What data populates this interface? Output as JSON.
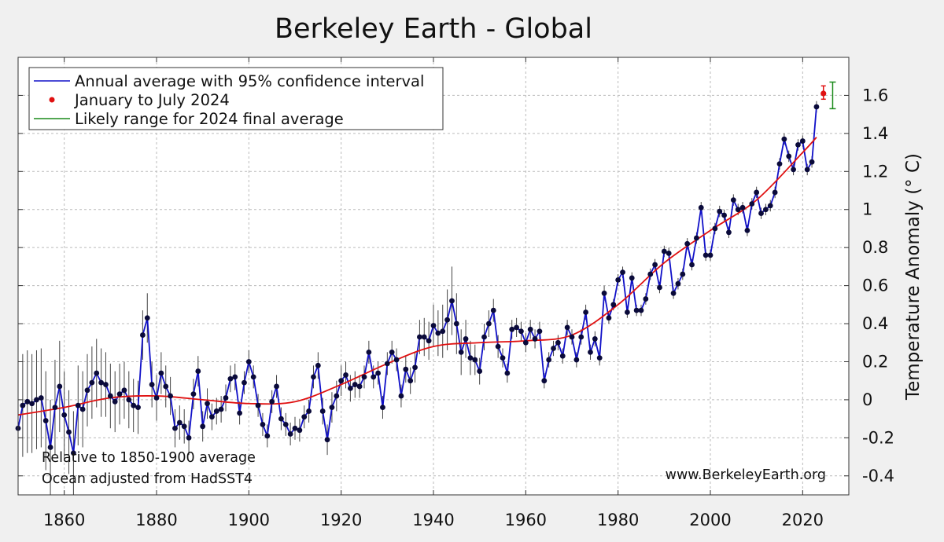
{
  "chart_data": {
    "type": "line",
    "title": "Berkeley Earth - Global",
    "ylabel": "Temperature Anomaly (° C)",
    "xlabel": "",
    "xlim": [
      1850,
      2030
    ],
    "ylim": [
      -0.5,
      1.8
    ],
    "grid": true,
    "legend_position": "top-left",
    "x_ticks": [
      "1860",
      "1880",
      "1900",
      "1920",
      "1940",
      "1960",
      "1980",
      "2000",
      "2020"
    ],
    "y_ticks": [
      "-0.4",
      "-0.2",
      "0",
      "0.2",
      "0.4",
      "0.6",
      "0.8",
      "1",
      "1.2",
      "1.4",
      "1.6"
    ],
    "legend": [
      "Annual average with 95% confidence interval",
      "January to July 2024",
      "Likely range for 2024 final average"
    ],
    "annotations": [
      "Relative to 1850-1900 average",
      "Ocean adjusted from HadSST4",
      "www.BerkeleyEarth.org"
    ],
    "colors": {
      "annual": "#1010c8",
      "points": "#0a0a3a",
      "smooth": "#e01010",
      "jan_jul": "#e01010",
      "likely": "#1a8a1a",
      "errorbar": "#444444"
    },
    "series": [
      {
        "name": "Annual average with 95% confidence interval",
        "x": [
          1850,
          1851,
          1852,
          1853,
          1854,
          1855,
          1856,
          1857,
          1858,
          1859,
          1860,
          1861,
          1862,
          1863,
          1864,
          1865,
          1866,
          1867,
          1868,
          1869,
          1870,
          1871,
          1872,
          1873,
          1874,
          1875,
          1876,
          1877,
          1878,
          1879,
          1880,
          1881,
          1882,
          1883,
          1884,
          1885,
          1886,
          1887,
          1888,
          1889,
          1890,
          1891,
          1892,
          1893,
          1894,
          1895,
          1896,
          1897,
          1898,
          1899,
          1900,
          1901,
          1902,
          1903,
          1904,
          1905,
          1906,
          1907,
          1908,
          1909,
          1910,
          1911,
          1912,
          1913,
          1914,
          1915,
          1916,
          1917,
          1918,
          1919,
          1920,
          1921,
          1922,
          1923,
          1924,
          1925,
          1926,
          1927,
          1928,
          1929,
          1930,
          1931,
          1932,
          1933,
          1934,
          1935,
          1936,
          1937,
          1938,
          1939,
          1940,
          1941,
          1942,
          1943,
          1944,
          1945,
          1946,
          1947,
          1948,
          1949,
          1950,
          1951,
          1952,
          1953,
          1954,
          1955,
          1956,
          1957,
          1958,
          1959,
          1960,
          1961,
          1962,
          1963,
          1964,
          1965,
          1966,
          1967,
          1968,
          1969,
          1970,
          1971,
          1972,
          1973,
          1974,
          1975,
          1976,
          1977,
          1978,
          1979,
          1980,
          1981,
          1982,
          1983,
          1984,
          1985,
          1986,
          1987,
          1988,
          1989,
          1990,
          1991,
          1992,
          1993,
          1994,
          1995,
          1996,
          1997,
          1998,
          1999,
          2000,
          2001,
          2002,
          2003,
          2004,
          2005,
          2006,
          2007,
          2008,
          2009,
          2010,
          2011,
          2012,
          2013,
          2014,
          2015,
          2016,
          2017,
          2018,
          2019,
          2020,
          2021,
          2022,
          2023
        ],
        "values": [
          -0.15,
          -0.03,
          -0.01,
          -0.02,
          0,
          0.01,
          -0.11,
          -0.25,
          -0.04,
          0.07,
          -0.08,
          -0.17,
          -0.28,
          -0.03,
          -0.05,
          0.05,
          0.09,
          0.14,
          0.09,
          0.08,
          0.02,
          -0.01,
          0.03,
          0.05,
          0,
          -0.03,
          -0.04,
          0.34,
          0.43,
          0.08,
          0.01,
          0.14,
          0.07,
          0.02,
          -0.15,
          -0.12,
          -0.14,
          -0.2,
          0.03,
          0.15,
          -0.14,
          -0.02,
          -0.09,
          -0.06,
          -0.05,
          0.01,
          0.11,
          0.12,
          -0.07,
          0.09,
          0.2,
          0.12,
          -0.03,
          -0.13,
          -0.19,
          -0.01,
          0.07,
          -0.1,
          -0.13,
          -0.18,
          -0.15,
          -0.16,
          -0.09,
          -0.06,
          0.12,
          0.18,
          -0.06,
          -0.21,
          -0.04,
          0.02,
          0.1,
          0.13,
          0.06,
          0.08,
          0.07,
          0.12,
          0.25,
          0.12,
          0.14,
          -0.04,
          0.19,
          0.25,
          0.21,
          0.02,
          0.16,
          0.1,
          0.17,
          0.33,
          0.33,
          0.31,
          0.39,
          0.35,
          0.36,
          0.42,
          0.52,
          0.4,
          0.25,
          0.32,
          0.22,
          0.21,
          0.15,
          0.33,
          0.4,
          0.47,
          0.28,
          0.22,
          0.14,
          0.37,
          0.38,
          0.36,
          0.3,
          0.37,
          0.32,
          0.36,
          0.1,
          0.21,
          0.27,
          0.3,
          0.23,
          0.38,
          0.33,
          0.21,
          0.33,
          0.46,
          0.25,
          0.32,
          0.22,
          0.56,
          0.43,
          0.5,
          0.63,
          0.67,
          0.46,
          0.64,
          0.47,
          0.47,
          0.53,
          0.66,
          0.71,
          0.59,
          0.78,
          0.77,
          0.56,
          0.61,
          0.66,
          0.82,
          0.71,
          0.85,
          1.01,
          0.76,
          0.76,
          0.9,
          0.99,
          0.97,
          0.88,
          1.05,
          1,
          1.01,
          0.89,
          1.03,
          1.09,
          0.98,
          1,
          1.02,
          1.09,
          1.24,
          1.37,
          1.28,
          1.21,
          1.34,
          1.36,
          1.21,
          1.25,
          1.54
        ],
        "ci_half_width": [
          0.27,
          0.27,
          0.27,
          0.26,
          0.26,
          0.26,
          0.26,
          0.25,
          0.25,
          0.24,
          0.23,
          0.22,
          0.22,
          0.21,
          0.2,
          0.19,
          0.19,
          0.18,
          0.18,
          0.17,
          0.17,
          0.16,
          0.16,
          0.15,
          0.15,
          0.14,
          0.14,
          0.13,
          0.13,
          0.12,
          0.12,
          0.11,
          0.11,
          0.1,
          0.1,
          0.09,
          0.09,
          0.09,
          0.08,
          0.08,
          0.08,
          0.08,
          0.07,
          0.07,
          0.07,
          0.07,
          0.07,
          0.07,
          0.06,
          0.06,
          0.06,
          0.06,
          0.06,
          0.06,
          0.06,
          0.06,
          0.06,
          0.06,
          0.06,
          0.06,
          0.06,
          0.06,
          0.06,
          0.06,
          0.06,
          0.07,
          0.07,
          0.08,
          0.08,
          0.08,
          0.08,
          0.07,
          0.07,
          0.07,
          0.06,
          0.06,
          0.06,
          0.06,
          0.06,
          0.06,
          0.06,
          0.06,
          0.06,
          0.06,
          0.07,
          0.07,
          0.08,
          0.09,
          0.1,
          0.1,
          0.11,
          0.12,
          0.14,
          0.16,
          0.18,
          0.16,
          0.12,
          0.1,
          0.09,
          0.08,
          0.07,
          0.07,
          0.07,
          0.06,
          0.06,
          0.05,
          0.05,
          0.05,
          0.05,
          0.05,
          0.05,
          0.05,
          0.05,
          0.05,
          0.04,
          0.04,
          0.04,
          0.04,
          0.04,
          0.04,
          0.04,
          0.04,
          0.04,
          0.04,
          0.04,
          0.04,
          0.04,
          0.04,
          0.03,
          0.03,
          0.03,
          0.03,
          0.03,
          0.03,
          0.03,
          0.03,
          0.03,
          0.03,
          0.03,
          0.03,
          0.03,
          0.03,
          0.03,
          0.03,
          0.03,
          0.03,
          0.03,
          0.03,
          0.03,
          0.03,
          0.03,
          0.03,
          0.03,
          0.03,
          0.03,
          0.03,
          0.03,
          0.03,
          0.03,
          0.03,
          0.03,
          0.03,
          0.03,
          0.03,
          0.03,
          0.03,
          0.03,
          0.03,
          0.03,
          0.03,
          0.03,
          0.03,
          0.03,
          0.03
        ]
      },
      {
        "name": "",
        "x": [
          1850,
          1860,
          1870,
          1880,
          1890,
          1900,
          1910,
          1920,
          1930,
          1940,
          1950,
          1960,
          1970,
          1980,
          1990,
          2000,
          2010,
          2020,
          2023
        ],
        "values": [
          -0.08,
          -0.04,
          0.01,
          0.02,
          0,
          -0.02,
          -0.01,
          0.08,
          0.19,
          0.28,
          0.3,
          0.31,
          0.34,
          0.5,
          0.72,
          0.89,
          1.05,
          1.3,
          1.38
        ]
      },
      {
        "name": "January to July 2024",
        "x": [
          2024.5
        ],
        "values": [
          1.61
        ],
        "err_low": [
          1.58
        ],
        "err_high": [
          1.65
        ]
      },
      {
        "name": "Likely range for 2024 final average",
        "x": [
          2026.5
        ],
        "low": [
          1.53
        ],
        "high": [
          1.67
        ]
      }
    ]
  }
}
